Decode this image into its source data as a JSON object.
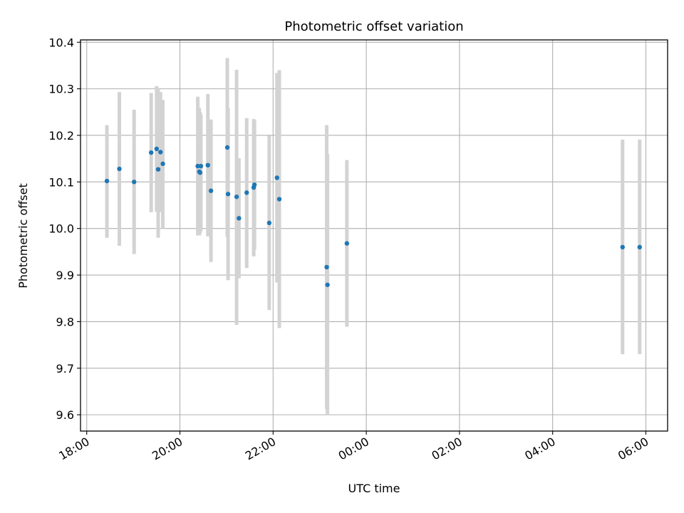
{
  "chart_data": {
    "type": "scatter",
    "title": "Photometric offset variation",
    "xlabel": "UTC time",
    "ylabel": "Photometric offset",
    "xlim": [
      "2000-01-01T17:52",
      "2000-01-02T06:28"
    ],
    "ylim": [
      9.565,
      10.405
    ],
    "grid": true,
    "x_ticks": [
      {
        "t": "2000-01-01T18:00",
        "label": "18:00"
      },
      {
        "t": "2000-01-01T20:00",
        "label": "20:00"
      },
      {
        "t": "2000-01-01T22:00",
        "label": "22:00"
      },
      {
        "t": "2000-01-02T00:00",
        "label": "00:00"
      },
      {
        "t": "2000-01-02T02:00",
        "label": "02:00"
      },
      {
        "t": "2000-01-02T04:00",
        "label": "04:00"
      },
      {
        "t": "2000-01-02T06:00",
        "label": "06:00"
      }
    ],
    "y_ticks": [
      {
        "v": 9.6,
        "label": "9.6"
      },
      {
        "v": 9.7,
        "label": "9.7"
      },
      {
        "v": 9.8,
        "label": "9.8"
      },
      {
        "v": 9.9,
        "label": "9.9"
      },
      {
        "v": 10.0,
        "label": "10.0"
      },
      {
        "v": 10.1,
        "label": "10.1"
      },
      {
        "v": 10.2,
        "label": "10.2"
      },
      {
        "v": 10.3,
        "label": "10.3"
      },
      {
        "v": 10.4,
        "label": "10.4"
      }
    ],
    "marker_color": "#1f77b4",
    "errorbar_color": "#d3d3d3",
    "points": [
      {
        "t": "2000-01-01T18:26",
        "y": 10.102,
        "lo": 9.98,
        "hi": 10.222
      },
      {
        "t": "2000-01-01T18:42",
        "y": 10.128,
        "lo": 9.963,
        "hi": 10.293
      },
      {
        "t": "2000-01-01T19:01",
        "y": 10.1,
        "lo": 9.945,
        "hi": 10.255
      },
      {
        "t": "2000-01-01T19:23",
        "y": 10.163,
        "lo": 10.035,
        "hi": 10.291
      },
      {
        "t": "2000-01-01T19:30",
        "y": 10.171,
        "lo": 10.036,
        "hi": 10.306
      },
      {
        "t": "2000-01-01T19:32",
        "y": 10.127,
        "lo": 9.98,
        "hi": 10.302
      },
      {
        "t": "2000-01-01T19:35",
        "y": 10.164,
        "lo": 10.035,
        "hi": 10.293
      },
      {
        "t": "2000-01-01T19:38",
        "y": 10.139,
        "lo": 10.0,
        "hi": 10.276
      },
      {
        "t": "2000-01-01T20:23",
        "y": 10.134,
        "lo": 9.985,
        "hi": 10.283
      },
      {
        "t": "2000-01-01T20:25",
        "y": 10.122,
        "lo": 9.985,
        "hi": 10.259
      },
      {
        "t": "2000-01-01T20:26",
        "y": 10.12,
        "lo": 9.99,
        "hi": 10.25
      },
      {
        "t": "2000-01-01T20:27",
        "y": 10.134,
        "lo": 9.995,
        "hi": 10.245
      },
      {
        "t": "2000-01-01T20:36",
        "y": 10.136,
        "lo": 9.983,
        "hi": 10.289
      },
      {
        "t": "2000-01-01T20:40",
        "y": 10.081,
        "lo": 9.928,
        "hi": 10.234
      },
      {
        "t": "2000-01-01T21:01",
        "y": 10.174,
        "lo": 9.982,
        "hi": 10.366
      },
      {
        "t": "2000-01-01T21:02",
        "y": 10.074,
        "lo": 9.889,
        "hi": 10.259
      },
      {
        "t": "2000-01-01T21:13",
        "y": 10.068,
        "lo": 9.793,
        "hi": 10.341
      },
      {
        "t": "2000-01-01T21:16",
        "y": 10.022,
        "lo": 9.893,
        "hi": 10.151
      },
      {
        "t": "2000-01-01T21:26",
        "y": 10.077,
        "lo": 9.915,
        "hi": 10.237
      },
      {
        "t": "2000-01-01T21:35",
        "y": 10.088,
        "lo": 9.94,
        "hi": 10.235
      },
      {
        "t": "2000-01-01T21:36",
        "y": 10.094,
        "lo": 9.955,
        "hi": 10.232
      },
      {
        "t": "2000-01-01T21:55",
        "y": 10.012,
        "lo": 9.825,
        "hi": 10.199
      },
      {
        "t": "2000-01-01T22:05",
        "y": 10.109,
        "lo": 9.884,
        "hi": 10.334
      },
      {
        "t": "2000-01-01T22:08",
        "y": 10.063,
        "lo": 9.786,
        "hi": 10.34
      },
      {
        "t": "2000-01-01T23:09",
        "y": 9.917,
        "lo": 9.612,
        "hi": 10.222
      },
      {
        "t": "2000-01-01T23:10",
        "y": 9.879,
        "lo": 9.6,
        "hi": 10.16
      },
      {
        "t": "2000-01-01T23:35",
        "y": 9.968,
        "lo": 9.789,
        "hi": 10.147
      },
      {
        "t": "2000-01-02T05:30",
        "y": 9.96,
        "lo": 9.73,
        "hi": 10.191
      },
      {
        "t": "2000-01-02T05:52",
        "y": 9.96,
        "lo": 9.73,
        "hi": 10.191
      }
    ]
  }
}
